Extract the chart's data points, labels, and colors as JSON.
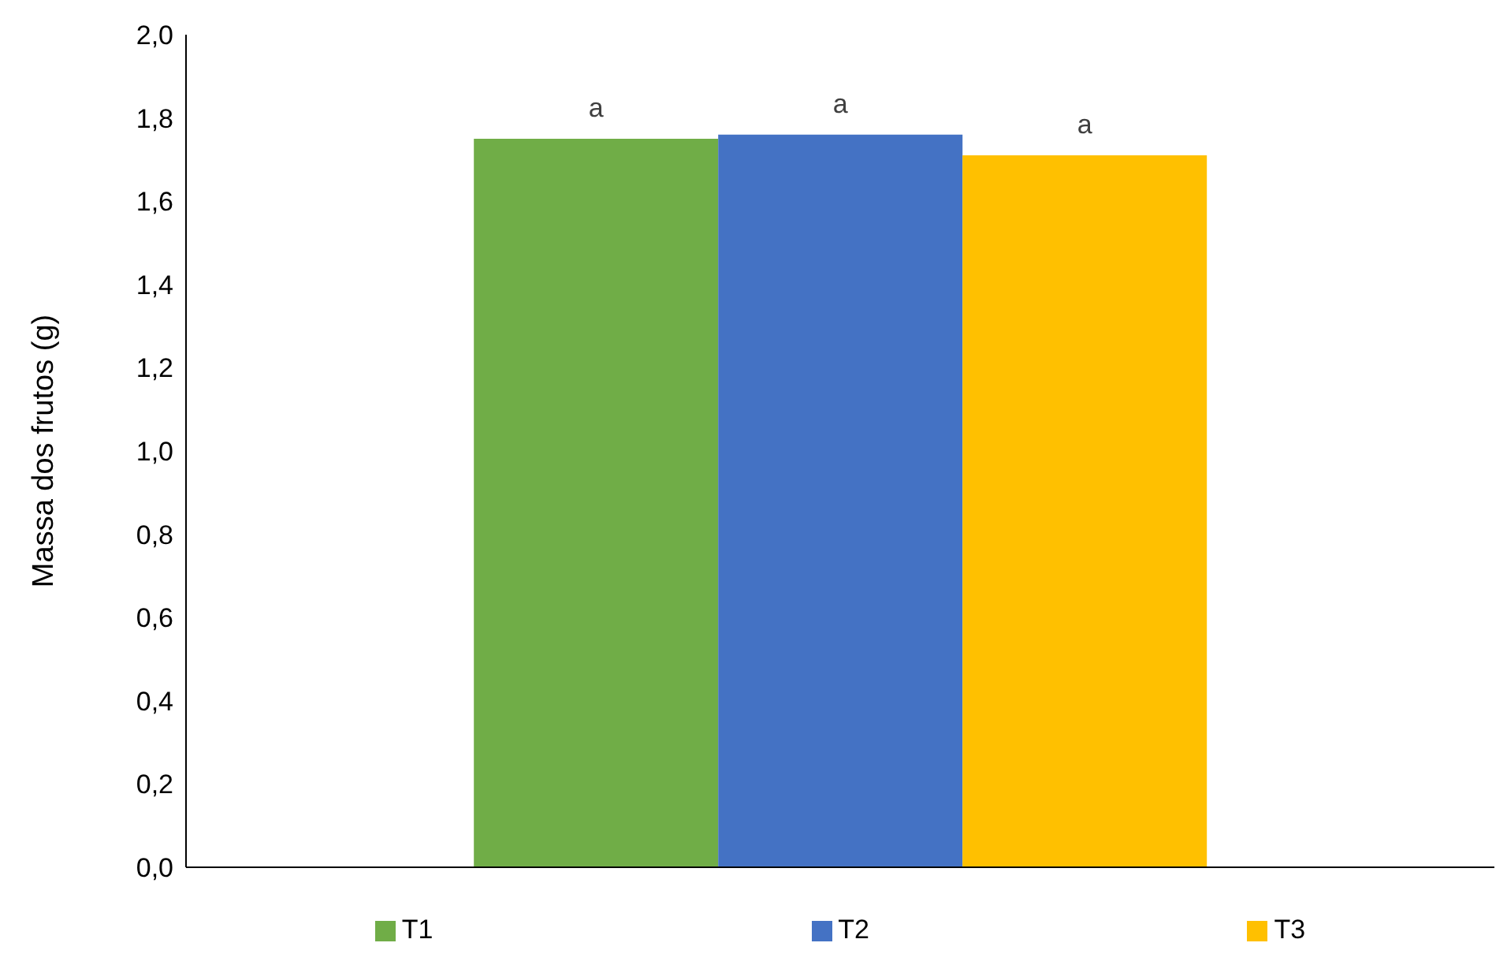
{
  "chart_data": {
    "type": "bar",
    "ylabel": "Massa dos frutos (g)",
    "categories": [
      null
    ],
    "series": [
      {
        "name": "T1",
        "color": "#70ad47",
        "values": [
          1.75
        ]
      },
      {
        "name": "T2",
        "color": "#4472c4",
        "values": [
          1.76
        ]
      },
      {
        "name": "T3",
        "color": "#ffc000",
        "values": [
          1.71
        ]
      }
    ],
    "annotations": [
      "a",
      "a",
      "a"
    ],
    "ylim": [
      0,
      2
    ],
    "yticks": [
      {
        "value": 0,
        "label": "0,0"
      },
      {
        "value": 0.2,
        "label": "0,2"
      },
      {
        "value": 0.4,
        "label": "0,4"
      },
      {
        "value": 0.6,
        "label": "0,6"
      },
      {
        "value": 0.8,
        "label": "0,8"
      },
      {
        "value": 1,
        "label": "1,0"
      },
      {
        "value": 1.2,
        "label": "1,2"
      },
      {
        "value": 1.4,
        "label": "1,4"
      },
      {
        "value": 1.6,
        "label": "1,6"
      },
      {
        "value": 1.8,
        "label": "1,8"
      },
      {
        "value": 2,
        "label": "2,0"
      }
    ],
    "grid": false,
    "legend": "bottom"
  }
}
